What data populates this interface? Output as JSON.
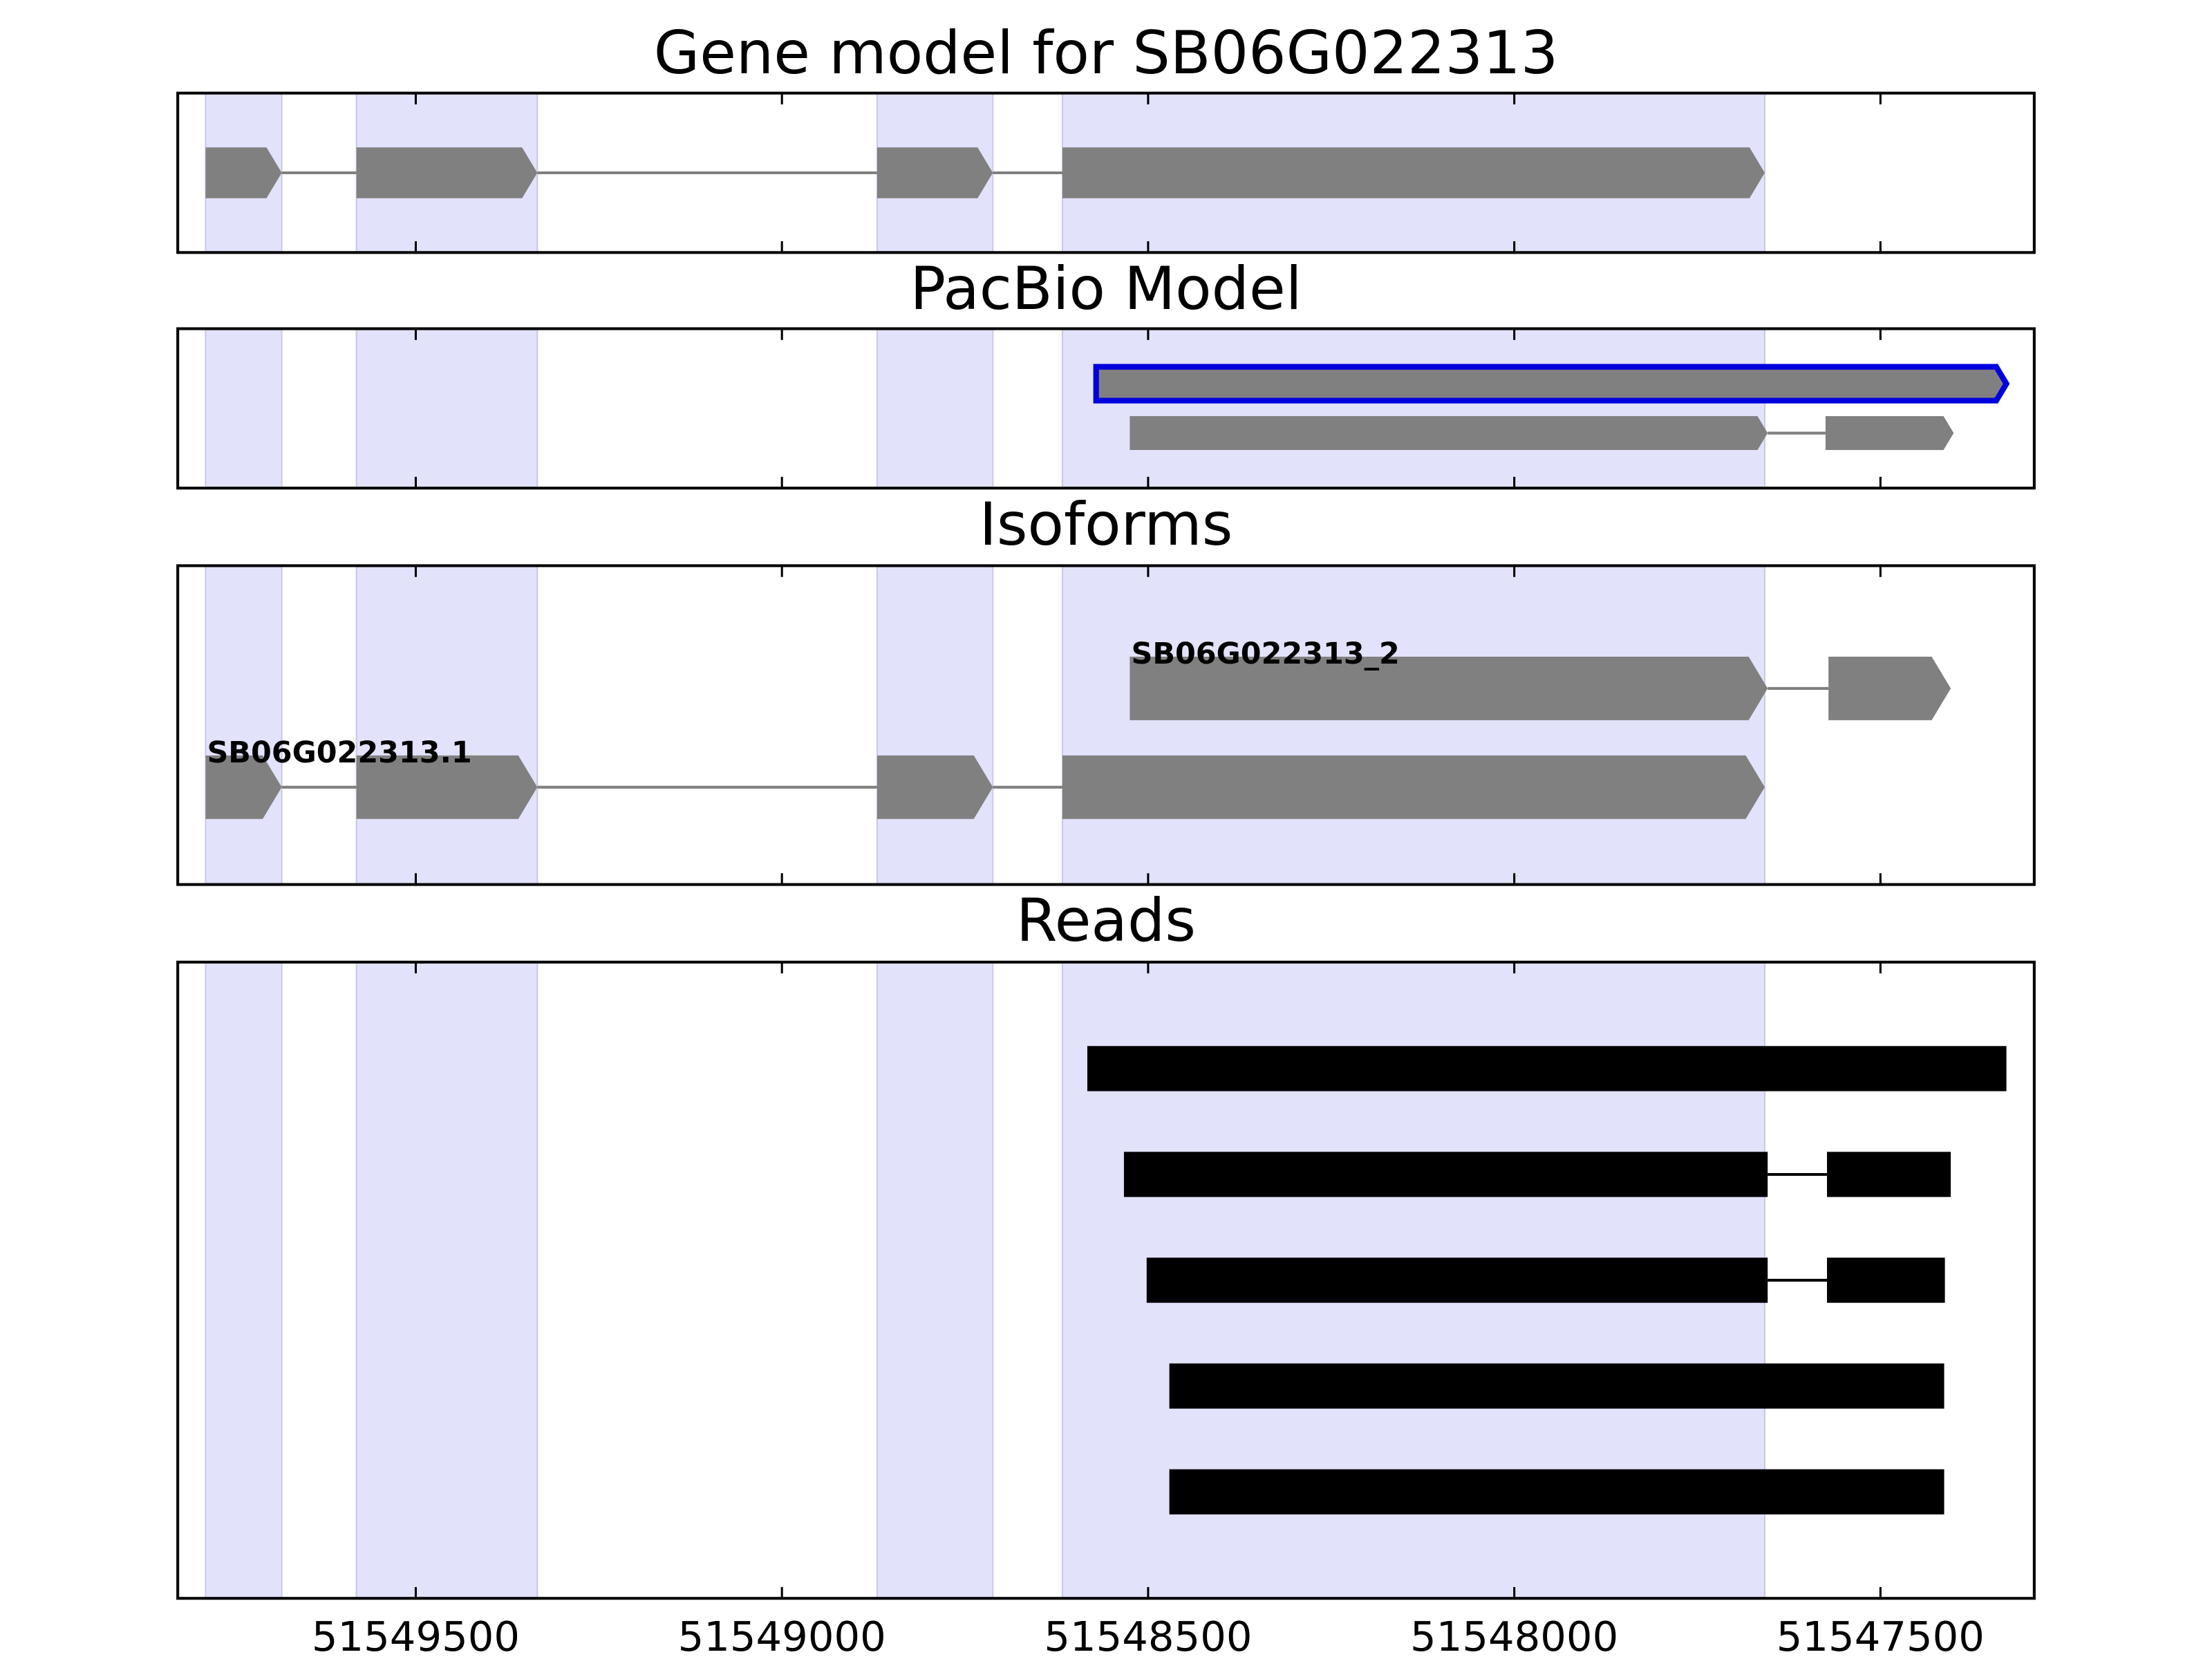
{
  "x_axis": {
    "xlim": [
      51549825,
      51547290
    ],
    "xticks": [
      51549500,
      51549000,
      51548500,
      51548000,
      51547500
    ],
    "highlight": [
      [
        51549787,
        51549683
      ],
      [
        51549581,
        51549334
      ],
      [
        51548870,
        51548712
      ],
      [
        51548617,
        51547658
      ]
    ],
    "highlight_color": "#e2e2fb"
  },
  "chart_data": [
    {
      "type": "gene",
      "title": "Gene model for SB06G022313",
      "color": "#808080",
      "tracks": [
        {
          "exons": [
            [
              51549787,
              51549683
            ],
            [
              51549581,
              51549334
            ],
            [
              51548870,
              51548712
            ],
            [
              51548617,
              51547658
            ]
          ]
        }
      ]
    },
    {
      "type": "gene",
      "title": "PacBio Model",
      "color": "#808080",
      "tracks": [
        {
          "edgecolor": "#0000dd",
          "exons": [
            [
              51548571,
              51547328
            ]
          ]
        },
        {
          "exons": [
            [
              51548525,
              51547654
            ],
            [
              51547575,
              51547400
            ]
          ]
        }
      ]
    },
    {
      "type": "gene",
      "title": "Isoforms",
      "color": "#808080",
      "tracks": [
        {
          "name": "SB06G022313_2",
          "exons": [
            [
              51548525,
              51547654
            ],
            [
              51547571,
              51547404
            ]
          ]
        },
        {
          "name": "SB06G022313.1",
          "exons": [
            [
              51549787,
              51549683
            ],
            [
              51549581,
              51549334
            ],
            [
              51548870,
              51548712
            ],
            [
              51548617,
              51547658
            ]
          ]
        }
      ]
    },
    {
      "type": "reads",
      "title": "Reads",
      "color": "#000000",
      "tracks": [
        {
          "exons": [
            [
              51548583,
              51547328
            ]
          ]
        },
        {
          "exons": [
            [
              51548533,
              51547654
            ],
            [
              51547573,
              51547404
            ]
          ]
        },
        {
          "exons": [
            [
              51548502,
              51547654
            ],
            [
              51547573,
              51547412
            ]
          ]
        },
        {
          "exons": [
            [
              51548471,
              51547413
            ]
          ]
        },
        {
          "exons": [
            [
              51548471,
              51547413
            ]
          ]
        }
      ]
    }
  ]
}
